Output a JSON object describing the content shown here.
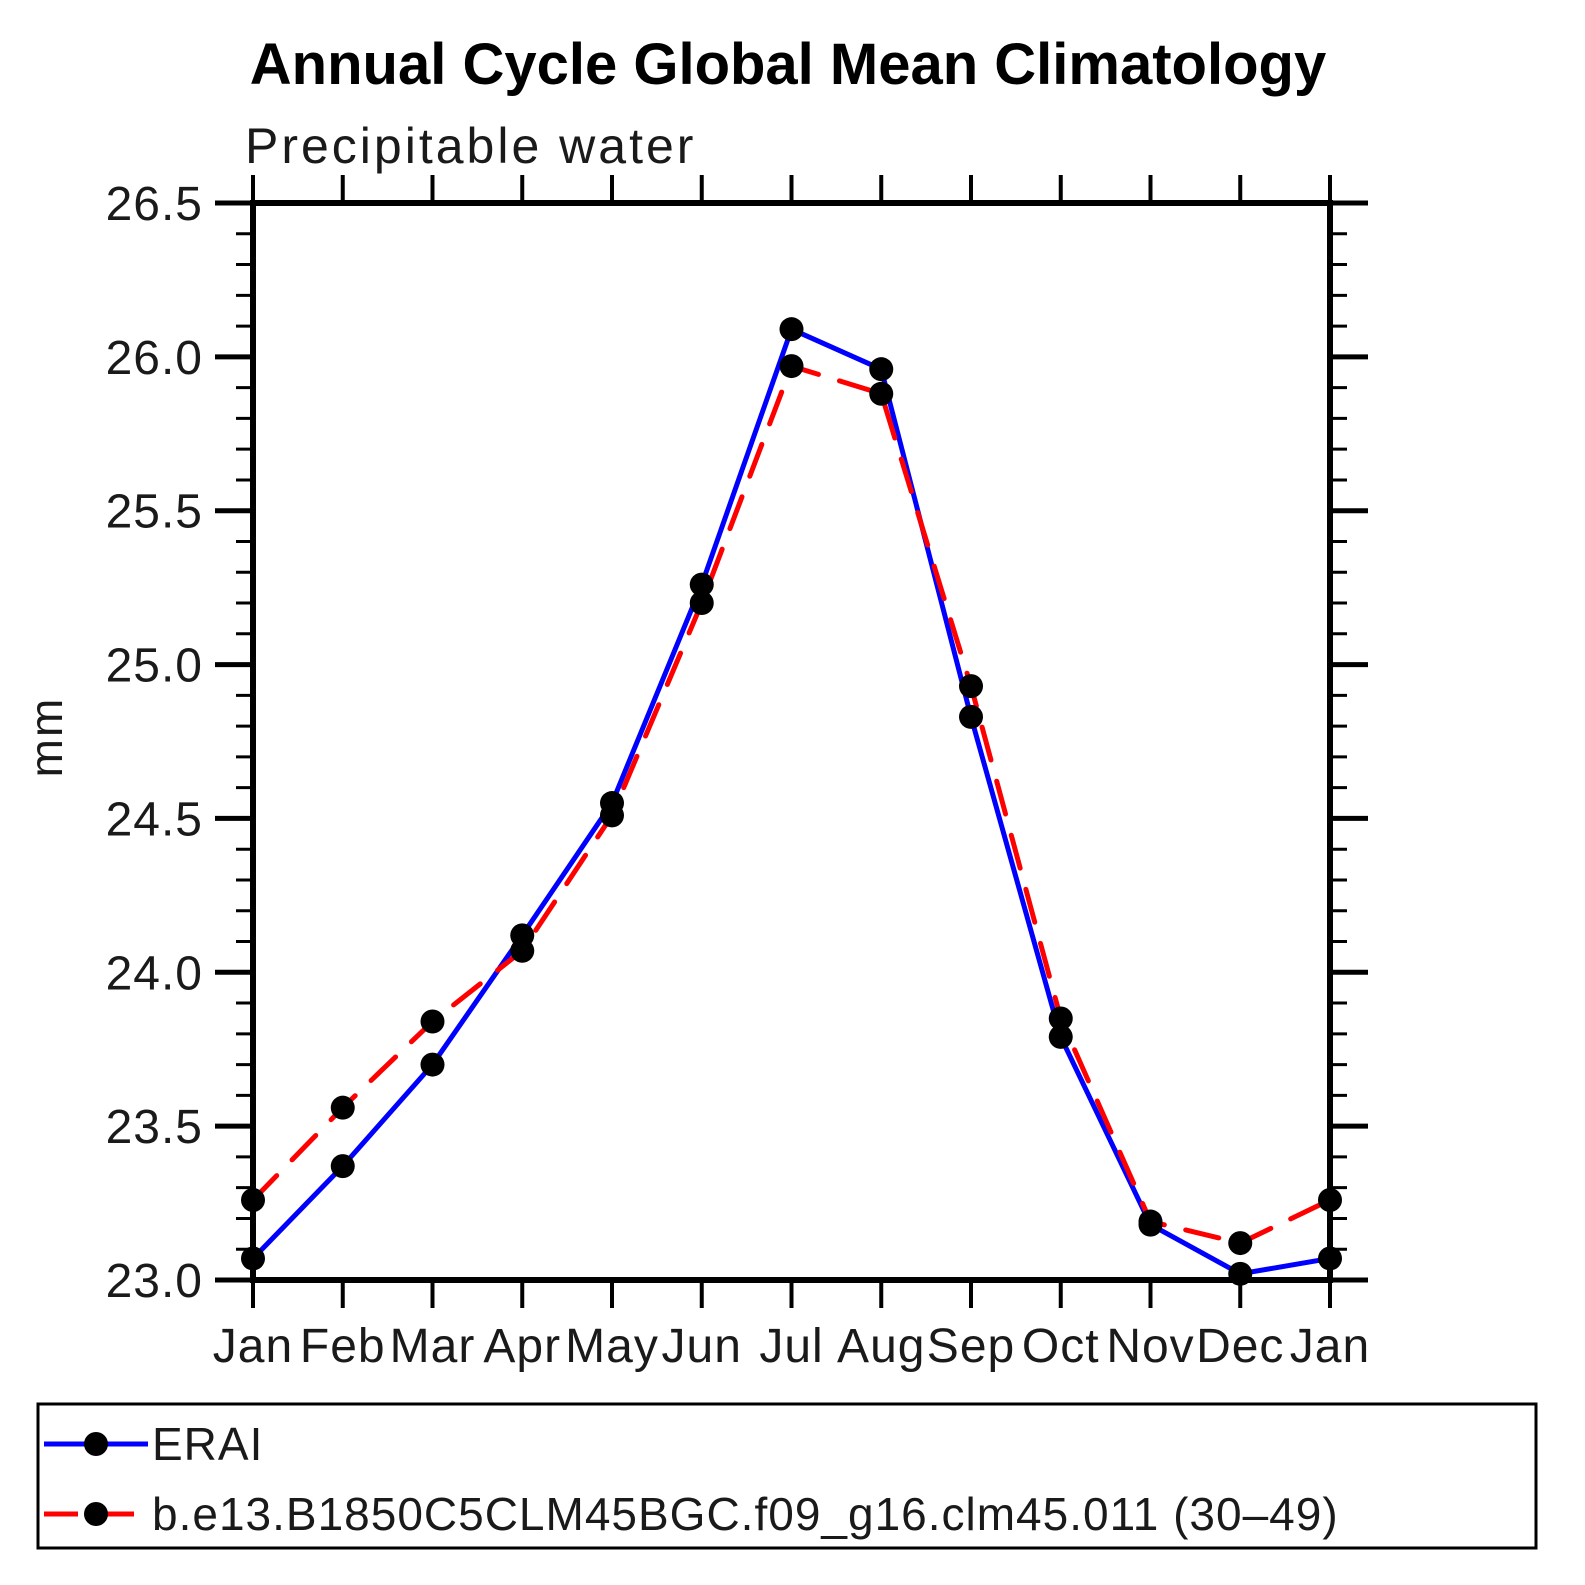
{
  "chart_data": {
    "type": "line",
    "title": "Annual Cycle Global Mean Climatology",
    "subtitle": "Precipitable water",
    "xlabel": "",
    "ylabel": "mm",
    "categories": [
      "Jan",
      "Feb",
      "Mar",
      "Apr",
      "May",
      "Jun",
      "Jul",
      "Aug",
      "Sep",
      "Oct",
      "Nov",
      "Dec",
      "Jan"
    ],
    "ylim": [
      23.0,
      26.5
    ],
    "y_major_step": 0.5,
    "y_minor_step": 0.1,
    "y_tick_labels": [
      "23.0",
      "23.5",
      "24.0",
      "24.5",
      "25.0",
      "25.5",
      "26.0",
      "26.5"
    ],
    "grid": false,
    "legend_position": "bottom-left-box",
    "axis_color": "#000000",
    "marker_color": "#000000",
    "series": [
      {
        "name": "ERAI",
        "color": "#0000ff",
        "style": "solid",
        "marker": "circle",
        "values": [
          23.07,
          23.37,
          23.7,
          24.12,
          24.55,
          25.26,
          26.09,
          25.96,
          24.83,
          23.79,
          23.18,
          23.02,
          23.07
        ]
      },
      {
        "name": "b.e13.B1850C5CLM45BGC.f09_g16.clm45.011 (30–49)",
        "color": "#ff0000",
        "style": "dashed",
        "marker": "circle",
        "values": [
          23.26,
          23.56,
          23.84,
          24.07,
          24.51,
          25.2,
          25.97,
          25.88,
          24.93,
          23.85,
          23.19,
          23.12,
          23.26
        ]
      }
    ]
  }
}
